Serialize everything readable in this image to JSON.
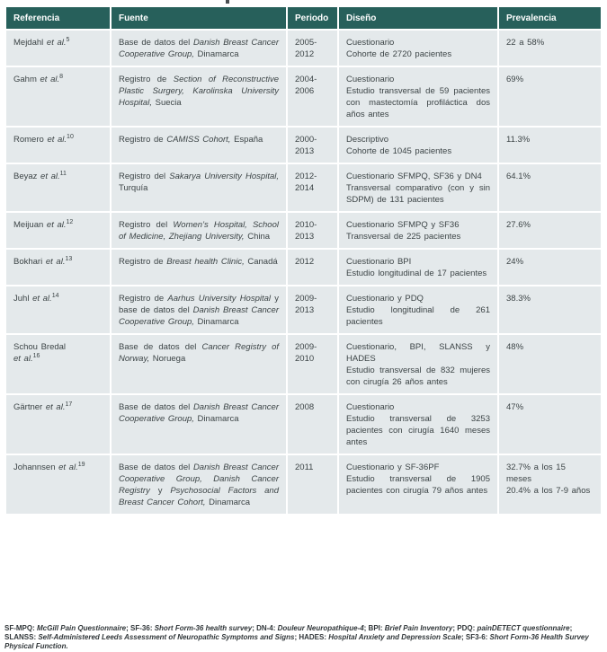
{
  "colors": {
    "header_bg": "#27605b",
    "header_text": "#ffffff",
    "row_bg": "#e4e9eb",
    "body_text": "#3c4446",
    "separator": "#ffffff",
    "footnote_text": "#303639"
  },
  "top_fragment": "p",
  "table": {
    "headers": [
      "Referencia",
      "Fuente",
      "Periodo",
      "Diseño",
      "Prevalencia"
    ],
    "rows": [
      {
        "referencia": [
          {
            "t": "Mejdahl "
          },
          {
            "t": "et al.",
            "i": true
          },
          {
            "t": "5",
            "sup": true
          }
        ],
        "fuente": [
          {
            "t": "Base de datos del "
          },
          {
            "t": "Danish Breast Cancer Cooperative Group,",
            "i": true
          },
          {
            "t": " Dinamarca"
          }
        ],
        "periodo": "2005-\n2012",
        "diseno": [
          "Cuestionario",
          "Cohorte de 2720 pacientes"
        ],
        "prevalencia": [
          "22 a 58%"
        ]
      },
      {
        "referencia": [
          {
            "t": "Gahm "
          },
          {
            "t": "et al.",
            "i": true
          },
          {
            "t": "8",
            "sup": true
          }
        ],
        "fuente": [
          {
            "t": "Registro de "
          },
          {
            "t": "Section of Reconstructive Plastic Surgery, Karolinska University Hospital,",
            "i": true
          },
          {
            "t": " Suecia"
          }
        ],
        "periodo": "2004-\n2006",
        "diseno": [
          "Cuestionario",
          "Estudio transversal de 59 pacientes con mastectomía profiláctica dos años antes"
        ],
        "prevalencia": [
          "69%"
        ]
      },
      {
        "referencia": [
          {
            "t": "Romero "
          },
          {
            "t": "et al.",
            "i": true
          },
          {
            "t": "10",
            "sup": true
          }
        ],
        "fuente": [
          {
            "t": "Registro de "
          },
          {
            "t": "CAMISS Cohort,",
            "i": true
          },
          {
            "t": " España"
          }
        ],
        "periodo": "2000-\n2013",
        "diseno": [
          "Descriptivo",
          "Cohorte de 1045 pacientes"
        ],
        "prevalencia": [
          "11.3%"
        ]
      },
      {
        "referencia": [
          {
            "t": "Beyaz "
          },
          {
            "t": "et al.",
            "i": true
          },
          {
            "t": "11",
            "sup": true
          }
        ],
        "fuente": [
          {
            "t": "Registro del "
          },
          {
            "t": "Sakarya University Hospital,",
            "i": true
          },
          {
            "t": " Turquía"
          }
        ],
        "periodo": "2012-\n2014",
        "diseno": [
          "Cuestionario SFMPQ, SF36 y DN4",
          "Transversal comparativo (con y sin SDPM) de 131 pacientes"
        ],
        "prevalencia": [
          "64.1%"
        ]
      },
      {
        "referencia": [
          {
            "t": "Meijuan "
          },
          {
            "t": "et al.",
            "i": true
          },
          {
            "t": "12",
            "sup": true
          }
        ],
        "fuente": [
          {
            "t": "Registro del "
          },
          {
            "t": "Women’s Hospital, School of Medicine, Zhejiang University,",
            "i": true
          },
          {
            "t": " China"
          }
        ],
        "periodo": "2010-\n2013",
        "diseno": [
          "Cuestionario SFMPQ y SF36",
          "Transversal de 225 pacientes"
        ],
        "prevalencia": [
          "27.6%"
        ]
      },
      {
        "referencia": [
          {
            "t": "Bokhari "
          },
          {
            "t": "et al.",
            "i": true
          },
          {
            "t": "13",
            "sup": true
          }
        ],
        "fuente": [
          {
            "t": "Registro de "
          },
          {
            "t": "Breast health Clinic,",
            "i": true
          },
          {
            "t": " Canadá"
          }
        ],
        "periodo": "2012",
        "diseno": [
          "Cuestionario BPI",
          "Estudio longitudinal de 17 pacientes"
        ],
        "prevalencia": [
          "24%"
        ]
      },
      {
        "referencia": [
          {
            "t": "Juhl "
          },
          {
            "t": "et al.",
            "i": true
          },
          {
            "t": "14",
            "sup": true
          }
        ],
        "fuente": [
          {
            "t": "Registro de "
          },
          {
            "t": "Aarhus University Hospital",
            "i": true
          },
          {
            "t": " y base de datos del "
          },
          {
            "t": "Danish Breast Cancer Cooperative Group,",
            "i": true
          },
          {
            "t": " Dinamarca"
          }
        ],
        "periodo": "2009-\n2013",
        "diseno": [
          "Cuestionario y PDQ",
          "Estudio longitudinal de 261 pacientes"
        ],
        "prevalencia": [
          "38.3%"
        ]
      },
      {
        "referencia": [
          {
            "t": "Schou Bredal"
          },
          {
            "t": "et al.",
            "i": true,
            "br": true
          },
          {
            "t": "16",
            "sup": true
          }
        ],
        "fuente": [
          {
            "t": "Base de datos del "
          },
          {
            "t": "Cancer Registry of Norway,",
            "i": true
          },
          {
            "t": " Noruega"
          }
        ],
        "periodo": "2009-\n2010",
        "diseno": [
          "Cuestionario, BPI, SLANSS y HADES",
          "Estudio transversal de 832 mujeres con cirugía 26 años antes"
        ],
        "prevalencia": [
          "48%"
        ]
      },
      {
        "referencia": [
          {
            "t": "Gärtner "
          },
          {
            "t": "et al.",
            "i": true
          },
          {
            "t": "17",
            "sup": true
          }
        ],
        "fuente": [
          {
            "t": "Base de datos del "
          },
          {
            "t": "Danish Breast Cancer Cooperative Group,",
            "i": true
          },
          {
            "t": " Dinamarca"
          }
        ],
        "periodo": "2008",
        "diseno": [
          "Cuestionario",
          "Estudio transversal de 3253 pacientes con cirugía 1640 meses antes"
        ],
        "prevalencia": [
          "47%"
        ]
      },
      {
        "referencia": [
          {
            "t": "Johannsen "
          },
          {
            "t": "et al.",
            "i": true
          },
          {
            "t": "19",
            "sup": true
          }
        ],
        "fuente": [
          {
            "t": "Base de datos del "
          },
          {
            "t": "Danish Breast Cancer Cooperative Group, Danish Cancer Registry",
            "i": true
          },
          {
            "t": " y "
          },
          {
            "t": "Psychosocial Factors and Breast Cancer Cohort,",
            "i": true
          },
          {
            "t": " Dinamarca"
          }
        ],
        "periodo": "2011",
        "diseno": [
          "Cuestionario y SF-36PF",
          "Estudio transversal de 1905 pacientes con cirugía 79 años antes"
        ],
        "prevalencia": [
          "32.7% a los 15 meses",
          "20.4% a los 7-9 años"
        ]
      }
    ]
  },
  "footnote": [
    {
      "t": "SF-MPQ: "
    },
    {
      "t": "McGill Pain Questionnaire",
      "i": true
    },
    {
      "t": "; SF-36: "
    },
    {
      "t": "Short Form-36 health survey",
      "i": true
    },
    {
      "t": "; DN-4: "
    },
    {
      "t": "Douleur Neuropathique-4",
      "i": true
    },
    {
      "t": "; BPI: "
    },
    {
      "t": "Brief Pain Inventory",
      "i": true
    },
    {
      "t": "; PDQ: "
    },
    {
      "t": "painDETECT questionnaire",
      "i": true
    },
    {
      "t": "; SLANSS: "
    },
    {
      "t": "Self-Administered Leeds Assessment of Neuropathic Symptoms and Signs",
      "i": true
    },
    {
      "t": "; HADES: "
    },
    {
      "t": "Hospital Anxiety and Depression Scale",
      "i": true
    },
    {
      "t": "; SF3-6: "
    },
    {
      "t": "Short Form-36 Health Survey Physical Function.",
      "i": true
    }
  ]
}
